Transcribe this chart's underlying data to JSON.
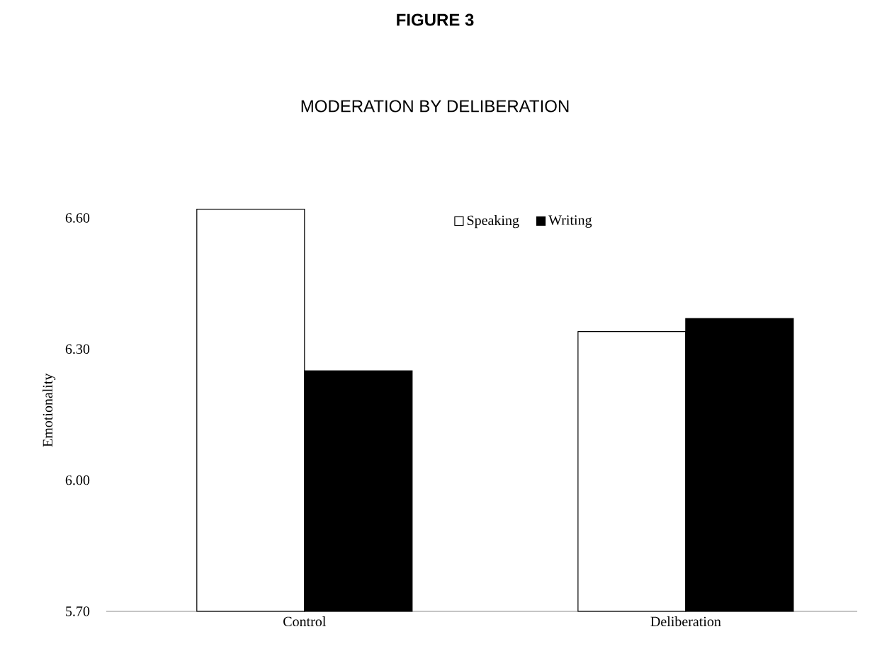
{
  "chart_data": {
    "type": "bar",
    "title": "FIGURE 3",
    "subtitle": "MODERATION BY DELIBERATION",
    "ylabel": "Emotionality",
    "categories": [
      "Control",
      "Deliberation"
    ],
    "series": [
      {
        "name": "Speaking",
        "color": "#ffffff",
        "values": [
          6.62,
          6.34
        ]
      },
      {
        "name": "Writing",
        "color": "#000000",
        "values": [
          6.25,
          6.37
        ]
      }
    ],
    "ylim": [
      5.7,
      6.62
    ],
    "yticks": [
      {
        "value": 5.7,
        "label": "5.70"
      },
      {
        "value": 6.0,
        "label": "6.00"
      },
      {
        "value": 6.3,
        "label": "6.30"
      },
      {
        "value": 6.6,
        "label": "6.60"
      }
    ],
    "legend": "top"
  }
}
